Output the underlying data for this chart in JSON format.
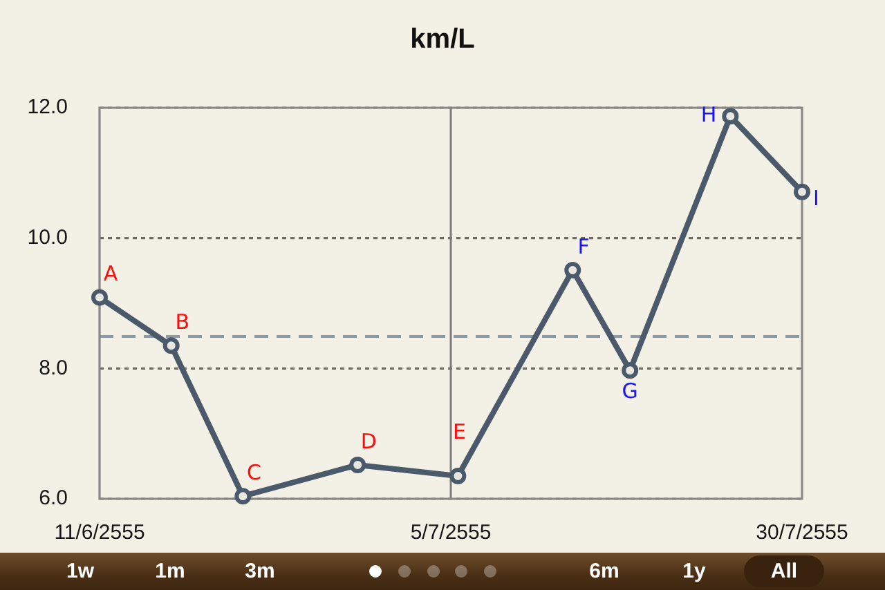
{
  "chart_data": {
    "type": "line",
    "title": "km/L",
    "x": [
      "2555-06-11",
      "2555-06-16",
      "2555-06-21",
      "2555-06-29",
      "2555-07-06",
      "2555-07-14",
      "2555-07-18",
      "2555-07-25",
      "2555-07-30"
    ],
    "series": [
      {
        "color": "#4a5a6b",
        "values": [
          9.09,
          8.35,
          6.04,
          6.52,
          6.35,
          9.51,
          7.97,
          11.87,
          10.71
        ]
      }
    ],
    "xlim": [
      "2555-06-11",
      "2555-07-30"
    ],
    "xticks": [
      {
        "value": "2555-06-11",
        "label": "11/6/2555"
      },
      {
        "value": "2555-07-05T12:00",
        "label": "5/7/2555"
      },
      {
        "value": "2555-07-30",
        "label": "30/7/2555"
      }
    ],
    "ylim": [
      6,
      12
    ],
    "yticks": [
      {
        "value": 6,
        "label": "6.0"
      },
      {
        "value": 8,
        "label": "8.0"
      },
      {
        "value": 10,
        "label": "10.0"
      },
      {
        "value": 12,
        "label": "12.0"
      }
    ],
    "ref_lines": [
      {
        "axis": "y",
        "value": 8.49,
        "color": "#8e9aa6",
        "line_style": "dashed"
      },
      {
        "axis": "x",
        "value": "2555-07-05T12:00",
        "color": "#7c7b79",
        "line_style": "solid"
      }
    ],
    "annotations": [
      {
        "text": "A",
        "x": "2555-06-11",
        "y": 9.09
      },
      {
        "text": "B",
        "x": "2555-06-16",
        "y": 8.35
      },
      {
        "text": "C",
        "x": "2555-06-21",
        "y": 6.04
      },
      {
        "text": "D",
        "x": "2555-06-29",
        "y": 6.52
      },
      {
        "text": "E",
        "x": "2555-07-06",
        "y": 6.35
      },
      {
        "text": "F",
        "x": "2555-07-14",
        "y": 9.51
      },
      {
        "text": "G",
        "x": "2555-07-18",
        "y": 7.97
      },
      {
        "text": "H",
        "x": "2555-07-25",
        "y": 11.87
      },
      {
        "text": "I",
        "x": "2555-07-30",
        "y": 10.71
      },
      "1w",
      "1m",
      "3m",
      "6m",
      "1y",
      "All"
    ],
    "grid": "y",
    "legend": false,
    "marker": "circle",
    "line_style": "solid"
  }
}
